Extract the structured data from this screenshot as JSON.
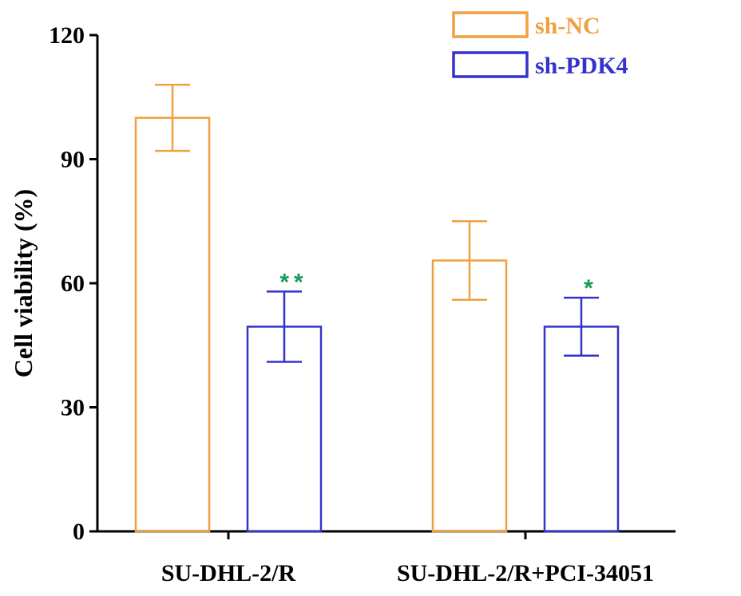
{
  "chart_data": {
    "type": "bar",
    "title": "",
    "xlabel": "",
    "ylabel": "Cell viability (%)",
    "ylim": [
      0,
      120
    ],
    "yticks": [
      0,
      30,
      60,
      90,
      120
    ],
    "ytick_labels": [
      "0",
      "30",
      "60",
      "90",
      "120"
    ],
    "categories": [
      "SU-DHL-2/R",
      "SU-DHL-2/R+PCI-34051"
    ],
    "series": [
      {
        "name": "sh-NC",
        "color": "#f0a040",
        "values": [
          100,
          65.5
        ],
        "errors": [
          8,
          9.5
        ],
        "significance": [
          "",
          ""
        ]
      },
      {
        "name": "sh-PDK4",
        "color": "#3333cc",
        "values": [
          49.5,
          49.5
        ],
        "errors": [
          8.5,
          7
        ],
        "significance": [
          "**",
          "*"
        ]
      }
    ],
    "significance_color": "#1a9a5a",
    "legend_position": "top-right",
    "grid": false
  }
}
